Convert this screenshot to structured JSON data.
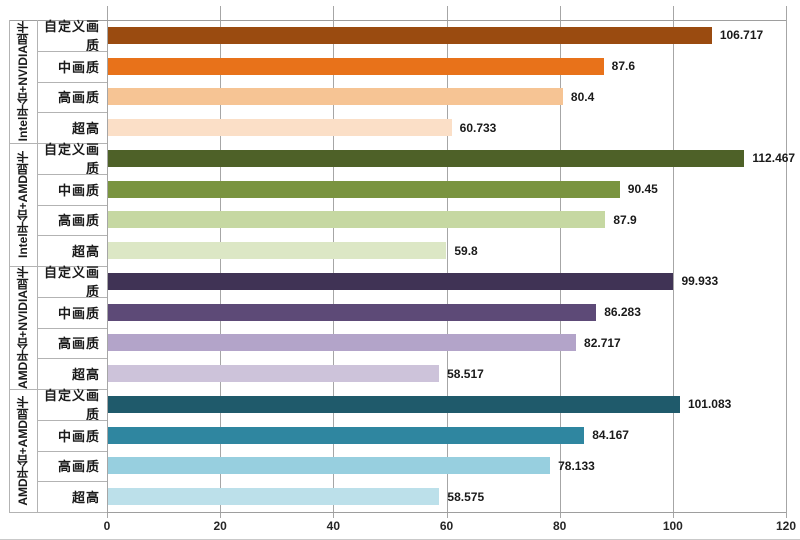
{
  "chart_data": {
    "type": "bar",
    "orientation": "horizontal",
    "title": "",
    "xlabel": "",
    "ylabel": "",
    "xlim": [
      0,
      120
    ],
    "x_ticks": [
      0,
      20,
      40,
      60,
      80,
      100,
      120
    ],
    "grid": "vertical-major",
    "legend": "none",
    "value_labels_shown": true,
    "colors": {
      "grid": "#a6a6a6",
      "separator": "#b3b3b3",
      "border": "#9e9e9e",
      "text": "#1a1a1a"
    },
    "groups": [
      {
        "label": "Intel平台+NVIDIA显卡",
        "rows": [
          {
            "category": "自定义画质",
            "value": 106.717,
            "value_label": "106.717",
            "color": "#9a4b10"
          },
          {
            "category": "中画质",
            "value": 87.6,
            "value_label": "87.6",
            "color": "#e8721a"
          },
          {
            "category": "高画质",
            "value": 80.4,
            "value_label": "80.4",
            "color": "#f6c494"
          },
          {
            "category": "超高",
            "value": 60.733,
            "value_label": "60.733",
            "color": "#fbdfc7"
          }
        ]
      },
      {
        "label": "Intel平台+AMD显卡",
        "rows": [
          {
            "category": "自定义画质",
            "value": 112.467,
            "value_label": "112.467",
            "color": "#4e6128"
          },
          {
            "category": "中画质",
            "value": 90.45,
            "value_label": "90.45",
            "color": "#7a9440"
          },
          {
            "category": "高画质",
            "value": 87.9,
            "value_label": "87.9",
            "color": "#c6d8a2"
          },
          {
            "category": "超高",
            "value": 59.8,
            "value_label": "59.8",
            "color": "#dce7c5"
          }
        ]
      },
      {
        "label": "AMD平台+NVIDIA显卡",
        "rows": [
          {
            "category": "自定义画质",
            "value": 99.933,
            "value_label": "99.933",
            "color": "#403355"
          },
          {
            "category": "中画质",
            "value": 86.283,
            "value_label": "86.283",
            "color": "#5d4a77"
          },
          {
            "category": "高画质",
            "value": 82.717,
            "value_label": "82.717",
            "color": "#b3a4c9"
          },
          {
            "category": "超高",
            "value": 58.517,
            "value_label": "58.517",
            "color": "#cdc3da"
          }
        ]
      },
      {
        "label": "AMD平台+AMD显卡",
        "rows": [
          {
            "category": "自定义画质",
            "value": 101.083,
            "value_label": "101.083",
            "color": "#1f5a6b"
          },
          {
            "category": "中画质",
            "value": 84.167,
            "value_label": "84.167",
            "color": "#2f86a0"
          },
          {
            "category": "高画质",
            "value": 78.133,
            "value_label": "78.133",
            "color": "#97cfdf"
          },
          {
            "category": "超高",
            "value": 58.575,
            "value_label": "58.575",
            "color": "#bce0ea"
          }
        ]
      }
    ]
  }
}
